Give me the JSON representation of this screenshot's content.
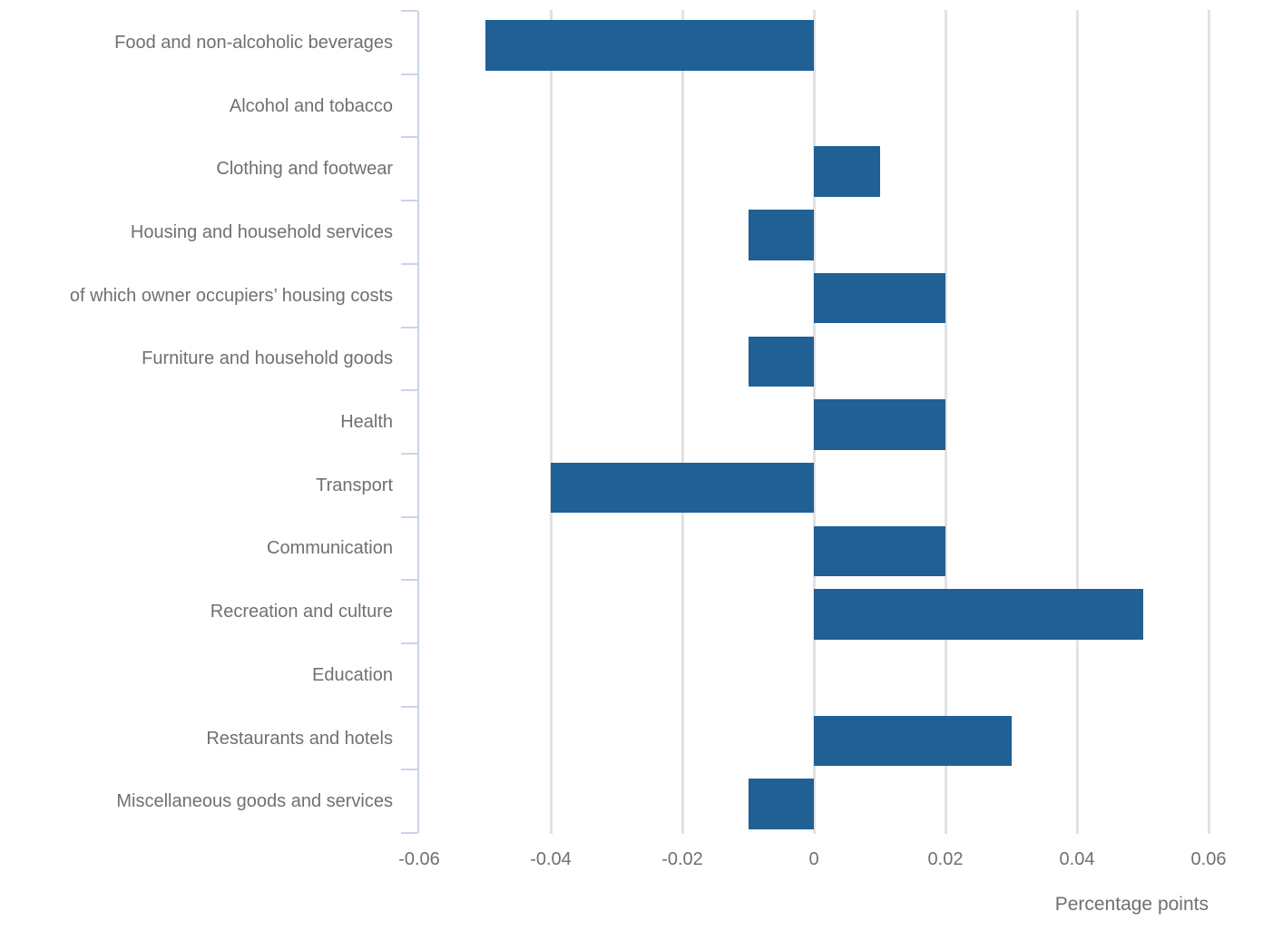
{
  "chart_data": {
    "type": "bar",
    "orientation": "horizontal",
    "title": "",
    "xlabel": "Percentage points",
    "categories": [
      "Food and non-alcoholic beverages",
      "Alcohol and tobacco",
      "Clothing and footwear",
      "Housing and household services",
      "of which owner occupiers’ housing costs",
      "Furniture and household goods",
      "Health",
      "Transport",
      "Communication",
      "Recreation and culture",
      "Education",
      "Restaurants and hotels",
      "Miscellaneous goods and services"
    ],
    "values": [
      -0.05,
      0,
      0.01,
      -0.01,
      0.02,
      -0.01,
      0.02,
      -0.04,
      0.02,
      0.05,
      0,
      0.03,
      -0.01
    ],
    "xlim": [
      -0.06,
      0.06
    ],
    "x_ticks": [
      {
        "value": -0.06,
        "label": "-0.06"
      },
      {
        "value": -0.04,
        "label": "-0.04"
      },
      {
        "value": -0.02,
        "label": "-0.02"
      },
      {
        "value": 0,
        "label": "0"
      },
      {
        "value": 0.02,
        "label": "0.02"
      },
      {
        "value": 0.04,
        "label": "0.04"
      },
      {
        "value": 0.06,
        "label": "0.06"
      }
    ],
    "grid": true,
    "legend": false,
    "colors": {
      "bar": "#206095",
      "gridline": "#e2e2e2",
      "axis_line": "#cad4e8",
      "text": "#6f7072",
      "background": "#ffffff"
    }
  }
}
